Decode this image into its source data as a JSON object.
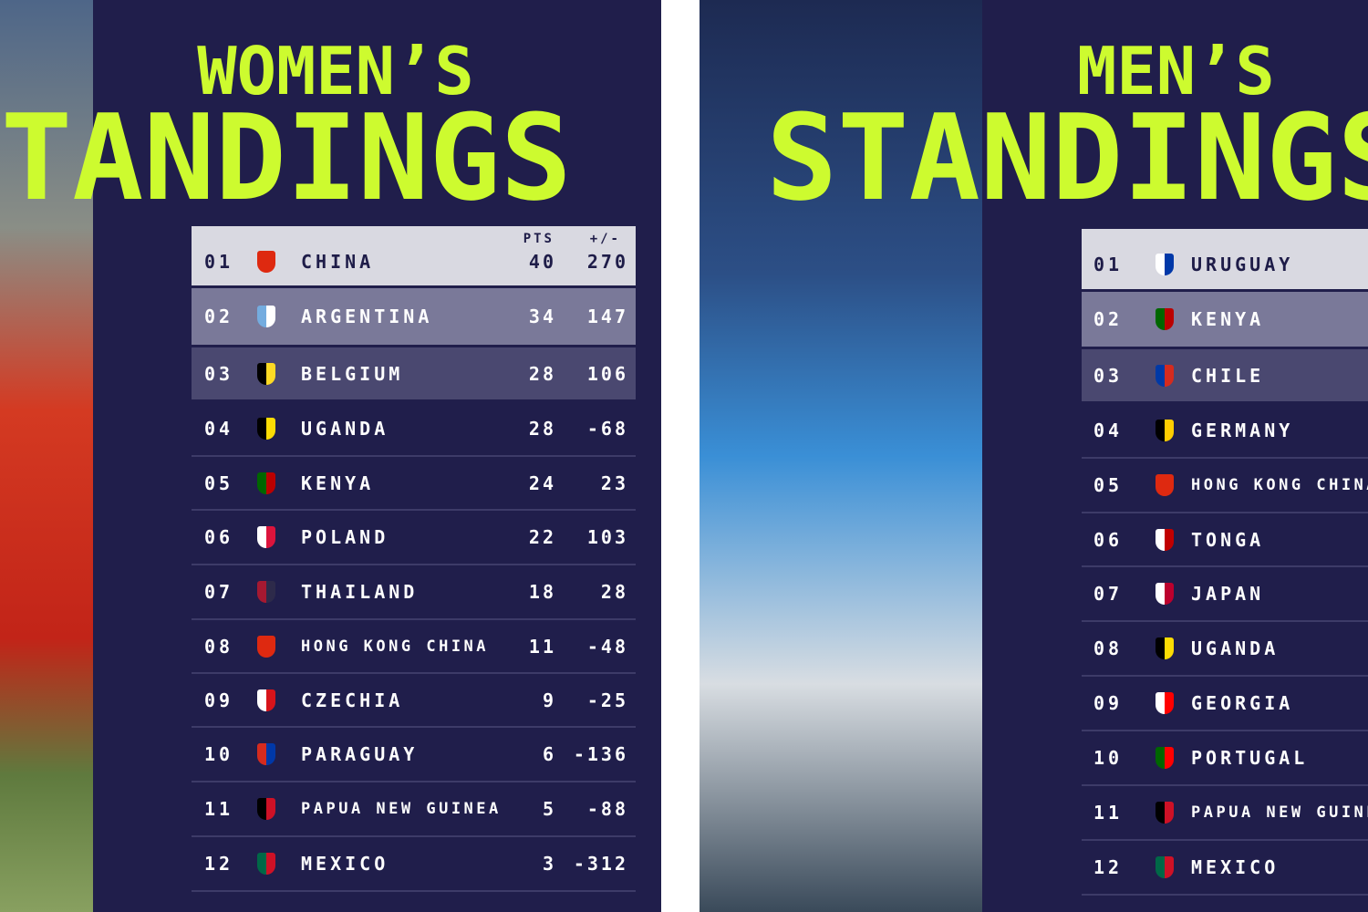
{
  "women": {
    "title_line1": "WOMEN’S",
    "title_line2": "STANDINGS",
    "columns": {
      "points": "PTS",
      "difference": "+/-"
    },
    "rows": [
      {
        "rank": "01",
        "team": "CHINA",
        "points": "40",
        "difference": "270"
      },
      {
        "rank": "02",
        "team": "ARGENTINA",
        "points": "34",
        "difference": "147"
      },
      {
        "rank": "03",
        "team": "BELGIUM",
        "points": "28",
        "difference": "106"
      },
      {
        "rank": "04",
        "team": "UGANDA",
        "points": "28",
        "difference": "-68"
      },
      {
        "rank": "05",
        "team": "KENYA",
        "points": "24",
        "difference": "23"
      },
      {
        "rank": "06",
        "team": "POLAND",
        "points": "22",
        "difference": "103"
      },
      {
        "rank": "07",
        "team": "THAILAND",
        "points": "18",
        "difference": "28"
      },
      {
        "rank": "08",
        "team": "HONG KONG CHINA",
        "points": "11",
        "difference": "-48"
      },
      {
        "rank": "09",
        "team": "CZECHIA",
        "points": "9",
        "difference": "-25"
      },
      {
        "rank": "10",
        "team": "PARAGUAY",
        "points": "6",
        "difference": "-136"
      },
      {
        "rank": "11",
        "team": "PAPUA NEW GUINEA",
        "points": "5",
        "difference": "-88"
      },
      {
        "rank": "12",
        "team": "MEXICO",
        "points": "3",
        "difference": "-312"
      }
    ]
  },
  "men": {
    "title_line1": "MEN’S",
    "title_line2": "STANDINGS",
    "rows": [
      {
        "rank": "01",
        "team": "URUGUAY"
      },
      {
        "rank": "02",
        "team": "KENYA"
      },
      {
        "rank": "03",
        "team": "CHILE"
      },
      {
        "rank": "04",
        "team": "GERMANY"
      },
      {
        "rank": "05",
        "team": "HONG KONG CHINA"
      },
      {
        "rank": "06",
        "team": "TONGA"
      },
      {
        "rank": "07",
        "team": "JAPAN"
      },
      {
        "rank": "08",
        "team": "UGANDA"
      },
      {
        "rank": "09",
        "team": "GEORGIA"
      },
      {
        "rank": "10",
        "team": "PORTUGAL"
      },
      {
        "rank": "11",
        "team": "PAPUA NEW GUINEA"
      },
      {
        "rank": "12",
        "team": "MEXICO"
      }
    ]
  }
}
